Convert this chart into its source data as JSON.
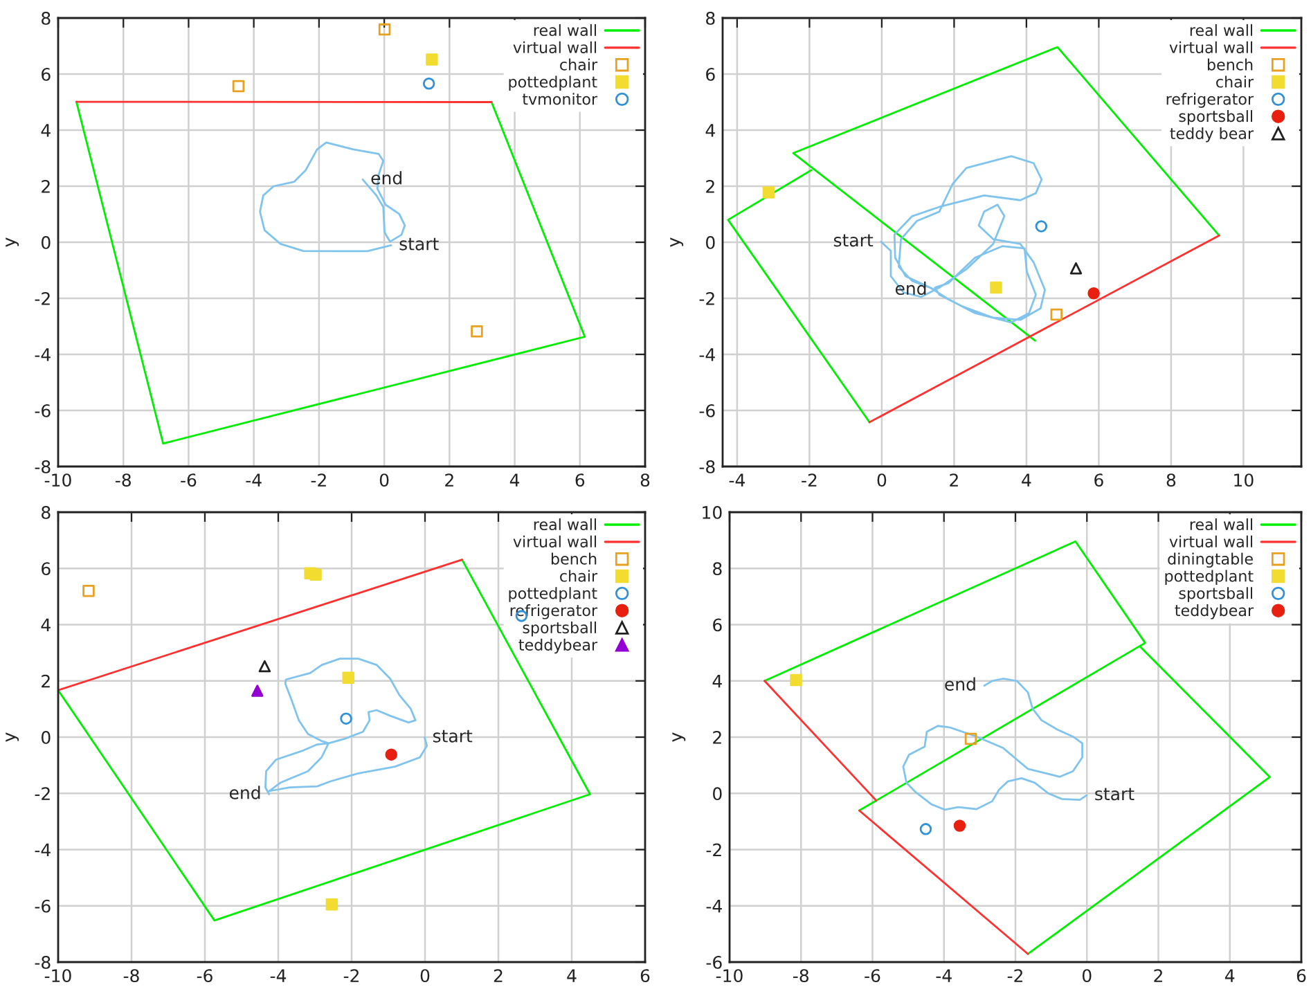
{
  "chart_data": [
    {
      "type": "line",
      "ylabel": "y",
      "xlim": [
        -10,
        8
      ],
      "ylim": [
        -8,
        8
      ],
      "xticks": [
        -10,
        -8,
        -6,
        -4,
        -2,
        0,
        2,
        4,
        6,
        8
      ],
      "yticks": [
        -8,
        -6,
        -4,
        -2,
        0,
        2,
        4,
        6,
        8
      ],
      "grid": true,
      "legend": "top right",
      "series": [
        {
          "name": "real wall",
          "color": "#00ee00",
          "x": [
            3.29,
            6.15,
            -6.78,
            -9.44
          ],
          "values": [
            5.0,
            -3.37,
            -7.18,
            5.01
          ]
        },
        {
          "name": "virtual wall",
          "color": "#ff3030",
          "x": [
            -9.44,
            3.29
          ],
          "values": [
            5.01,
            5.0
          ]
        },
        {
          "name": "chair",
          "type": "scatter",
          "marker": "square",
          "color": "#e8a020",
          "x": [
            0.01,
            -4.47,
            2.84
          ],
          "values": [
            7.59,
            5.57,
            -3.18
          ]
        },
        {
          "name": "pottedplant",
          "type": "scatter",
          "marker": "square",
          "color": "#f2dc30",
          "x": [
            1.46
          ],
          "values": [
            6.52
          ]
        },
        {
          "name": "tvmonitor",
          "type": "scatter",
          "marker": "circle",
          "color": "#3090d8",
          "x": [
            1.37
          ],
          "values": [
            5.66
          ]
        },
        {
          "color": "#80c4ee",
          "x": [
            0.21,
            -0.52,
            -1.5,
            -2.48,
            -3.18,
            -3.67,
            -3.81,
            -3.71,
            -3.39,
            -2.76,
            -2.41,
            -2.06,
            -1.78,
            -0.94,
            -0.17,
            -0.03,
            -0.17,
            -0.21,
            0.04,
            0.46,
            0.63,
            0.53,
            0.18,
            0.01,
            -0.03,
            -0.24,
            -0.66
          ],
          "values": [
            -0.11,
            -0.32,
            -0.32,
            -0.31,
            -0.06,
            0.43,
            1.09,
            1.67,
            2.0,
            2.16,
            2.57,
            3.31,
            3.56,
            3.31,
            3.15,
            2.9,
            2.41,
            1.91,
            1.34,
            1.01,
            0.6,
            0.27,
            0.02,
            0.35,
            1.26,
            1.67,
            2.24
          ]
        }
      ],
      "annotations": [
        {
          "text": "end",
          "x": -0.66,
          "y": 2.24
        },
        {
          "text": "start",
          "x": 0.21,
          "y": -0.11
        }
      ]
    },
    {
      "type": "line",
      "ylabel": "y",
      "xlim": [
        -4.4,
        11.6
      ],
      "ylim": [
        -8,
        8
      ],
      "xticks": [
        -4,
        -2,
        0,
        2,
        4,
        6,
        8,
        10
      ],
      "yticks": [
        -8,
        -6,
        -4,
        -2,
        0,
        2,
        4,
        6,
        8
      ],
      "grid": true,
      "legend": "top right",
      "series": [
        {
          "name": "real wall",
          "color": "#00ee00",
          "x": [
            9.33,
            4.86,
            -2.45,
            4.24,
            null,
            -1.95,
            -4.25,
            -0.34
          ],
          "values": [
            0.24,
            6.96,
            3.18,
            -3.51,
            null,
            2.57,
            0.8,
            -6.42
          ]
        },
        {
          "name": "virtual wall",
          "color": "#ff3030",
          "x": [
            -0.34,
            9.33
          ],
          "values": [
            -6.42,
            0.24
          ]
        },
        {
          "name": "bench",
          "type": "scatter",
          "marker": "square",
          "color": "#e8a020",
          "x": [
            4.83
          ],
          "values": [
            -2.58
          ]
        },
        {
          "name": "chair",
          "type": "scatter",
          "marker": "square",
          "color": "#f2dc30",
          "x": [
            -3.13,
            3.16
          ],
          "values": [
            1.78,
            -1.62
          ]
        },
        {
          "name": "refrigerator",
          "type": "scatter",
          "marker": "circle",
          "color": "#3090d8",
          "x": [
            4.41
          ],
          "values": [
            0.57
          ]
        },
        {
          "name": "sportsball",
          "type": "scatter",
          "marker": "circle",
          "color": "#e82010",
          "x": [
            5.86
          ],
          "values": [
            -1.82
          ]
        },
        {
          "name": "teddy bear",
          "type": "scatter",
          "marker": "triangle",
          "color": "#202020",
          "x": [
            5.37
          ],
          "values": [
            -0.93
          ]
        },
        {
          "color": "#80c4ee",
          "x": [
            -0.02,
            0.25,
            0.25,
            0.6,
            1.09,
            1.59,
            2.34,
            3.08,
            3.39,
            3.2,
            2.83,
            2.68,
            3.08,
            3.83,
            4.2,
            4.51,
            4.39,
            3.83,
            3.08,
            2.21,
            1.59,
            1.47,
            1.84,
            2.58,
            3.33,
            3.95,
            4.01,
            4.26,
            4.07,
            3.58,
            2.58,
            1.84,
            1.34,
            0.84,
            0.47,
            0.53,
            0.97,
            1.59,
            1.96,
            2.34,
            3.58,
            4.2,
            4.42,
            4.26,
            3.83,
            2.83,
            1.59,
            0.84,
            0.35,
            0.37,
            0.66,
            1.47
          ],
          "values": [
            0.02,
            -0.31,
            -1.21,
            -1.79,
            -1.95,
            -1.62,
            -0.96,
            -0.06,
            0.93,
            1.34,
            1.09,
            0.6,
            0.11,
            -0.06,
            -0.72,
            -1.7,
            -2.36,
            -2.77,
            -2.69,
            -2.28,
            -1.87,
            -1.62,
            -1.46,
            -0.55,
            -0.14,
            -0.22,
            -1.05,
            -1.87,
            -2.53,
            -2.86,
            -2.53,
            -2.03,
            -1.62,
            -1.38,
            -0.88,
            0.11,
            0.76,
            1.09,
            2.08,
            2.65,
            3.07,
            2.82,
            2.24,
            1.75,
            1.5,
            1.67,
            1.26,
            0.93,
            0.27,
            -0.55,
            -1.21,
            -1.7
          ]
        }
      ],
      "annotations": [
        {
          "text": "start",
          "x": -0.02,
          "y": 0.02
        },
        {
          "text": "end",
          "x": 1.47,
          "y": -1.7
        }
      ]
    },
    {
      "type": "line",
      "ylabel": "y",
      "xlim": [
        -10,
        6
      ],
      "ylim": [
        -8,
        8
      ],
      "xticks": [
        -10,
        -8,
        -6,
        -4,
        -2,
        0,
        2,
        4,
        6
      ],
      "yticks": [
        -8,
        -6,
        -4,
        -2,
        0,
        2,
        4,
        6,
        8
      ],
      "grid": true,
      "legend": "top right",
      "series": [
        {
          "name": "real wall",
          "color": "#00ee00",
          "x": [
            1.01,
            4.5,
            -5.74,
            -10.0
          ],
          "values": [
            6.31,
            -2.03,
            -6.52,
            1.67
          ]
        },
        {
          "name": "virtual wall",
          "color": "#ff3030",
          "x": [
            -10.0,
            1.01
          ],
          "values": [
            1.67,
            6.31
          ]
        },
        {
          "name": "bench",
          "type": "scatter",
          "marker": "square",
          "color": "#e8a020",
          "x": [
            -9.17
          ],
          "values": [
            5.2
          ]
        },
        {
          "name": "chair",
          "type": "scatter",
          "marker": "square",
          "color": "#f2dc30",
          "x": [
            -3.13,
            -2.98,
            -2.09,
            -2.54
          ],
          "values": [
            5.83,
            5.78,
            2.11,
            -5.95
          ]
        },
        {
          "name": "pottedplant",
          "type": "scatter",
          "marker": "circle",
          "color": "#3090d8",
          "x": [
            -2.15,
            2.63
          ],
          "values": [
            0.66,
            4.31
          ]
        },
        {
          "name": "refrigerator",
          "type": "scatter",
          "marker": "circle",
          "color": "#e82010",
          "x": [
            -0.92
          ],
          "values": [
            -0.62
          ]
        },
        {
          "name": "sportsball",
          "type": "scatter",
          "marker": "triangle",
          "color": "#202020",
          "x": [
            -4.37
          ],
          "values": [
            2.52
          ]
        },
        {
          "name": "teddybear",
          "type": "scatter",
          "marker": "triangle",
          "color": "#9400d3",
          "x": [
            -4.57
          ],
          "values": [
            1.65
          ]
        },
        {
          "color": "#80c4ee",
          "x": [
            -0.01,
            0.05,
            -0.14,
            -0.82,
            -1.82,
            -2.57,
            -2.94,
            -3.69,
            -4.25,
            -3.94,
            -3.19,
            -2.82,
            -2.63,
            -2.19,
            -1.69,
            -1.51,
            -1.54,
            -1.32,
            -0.95,
            -0.45,
            -0.26,
            -0.39,
            -0.7,
            -0.95,
            -1.32,
            -1.82,
            -2.32,
            -2.81,
            -3.13,
            -3.79,
            -3.81,
            -3.62,
            -3.44,
            -3.19,
            -2.81,
            -2.63,
            -2.94,
            -3.31,
            -4.06,
            -4.33,
            -4.35,
            -4.25
          ],
          "values": [
            -0.01,
            -0.31,
            -0.72,
            -1.05,
            -1.29,
            -1.57,
            -1.75,
            -1.79,
            -1.92,
            -1.62,
            -1.21,
            -0.72,
            -0.22,
            -0.06,
            0.19,
            0.6,
            0.89,
            0.96,
            0.76,
            0.52,
            0.6,
            1.01,
            1.5,
            2.08,
            2.57,
            2.79,
            2.79,
            2.57,
            2.28,
            2.05,
            1.91,
            1.26,
            0.6,
            0.11,
            -0.14,
            -0.22,
            -0.26,
            -0.47,
            -0.8,
            -1.21,
            -1.79,
            -2.03
          ]
        }
      ],
      "annotations": [
        {
          "text": "start",
          "x": -0.01,
          "y": -0.01
        },
        {
          "text": "end",
          "x": -4.25,
          "y": -2.03
        }
      ]
    },
    {
      "type": "line",
      "ylabel": "y",
      "xlim": [
        -10,
        6
      ],
      "ylim": [
        -6,
        10
      ],
      "xticks": [
        -10,
        -8,
        -6,
        -4,
        -2,
        0,
        2,
        4,
        6
      ],
      "yticks": [
        -6,
        -4,
        -2,
        0,
        2,
        4,
        6,
        8,
        10
      ],
      "grid": true,
      "legend": "top right",
      "series": [
        {
          "name": "real wall",
          "color": "#00ee00",
          "x": [
            -9.02,
            -0.32,
            1.63,
            -6.37,
            null,
            1.48,
            5.12,
            -1.65
          ],
          "values": [
            4.0,
            8.96,
            5.35,
            -0.61,
            null,
            5.23,
            0.58,
            -5.71
          ]
        },
        {
          "name": "virtual wall",
          "color": "#ff3030",
          "x": [
            -9.02,
            -5.9,
            null,
            -6.37,
            -1.65
          ],
          "values": [
            4.0,
            -0.25,
            null,
            -0.61,
            -5.71
          ]
        },
        {
          "name": "diningtable",
          "type": "scatter",
          "marker": "square",
          "color": "#e8a020",
          "x": [
            -3.25
          ],
          "values": [
            1.94
          ]
        },
        {
          "name": "pottedplant",
          "type": "scatter",
          "marker": "square",
          "color": "#f2dc30",
          "x": [
            -8.14
          ],
          "values": [
            4.03
          ]
        },
        {
          "name": "sportsball",
          "type": "scatter",
          "marker": "circle",
          "color": "#3090d8",
          "x": [
            -4.51
          ],
          "values": [
            -1.27
          ]
        },
        {
          "name": "teddybear",
          "type": "scatter",
          "marker": "circle",
          "color": "#e82010",
          "x": [
            -3.56
          ],
          "values": [
            -1.15
          ]
        },
        {
          "color": "#80c4ee",
          "x": [
            -0.01,
            -0.2,
            -0.7,
            -1.08,
            -1.46,
            -1.83,
            -2.21,
            -2.46,
            -2.65,
            -3.09,
            -3.6,
            -3.98,
            -4.35,
            -4.8,
            -5.05,
            -5.14,
            -4.98,
            -4.54,
            -4.48,
            -4.17,
            -3.85,
            -3.09,
            -2.34,
            -1.96,
            -1.65,
            -1.14,
            -0.76,
            -0.39,
            -0.13,
            -0.13,
            -0.39,
            -0.83,
            -1.27,
            -1.52,
            -1.65,
            -1.96,
            -2.34,
            -2.65,
            -2.87
          ],
          "values": [
            -0.07,
            -0.23,
            -0.2,
            0.0,
            0.38,
            0.54,
            0.43,
            0.13,
            -0.28,
            -0.56,
            -0.49,
            -0.58,
            -0.39,
            0.05,
            0.38,
            0.95,
            1.37,
            1.66,
            2.19,
            2.4,
            2.35,
            2.02,
            1.61,
            1.2,
            0.87,
            0.71,
            0.59,
            0.79,
            1.28,
            1.78,
            2.02,
            2.27,
            2.6,
            3.01,
            3.59,
            4.0,
            4.08,
            4.0,
            3.83
          ]
        }
      ],
      "annotations": [
        {
          "text": "start",
          "x": -0.01,
          "y": -0.07
        },
        {
          "text": "end",
          "x": -2.87,
          "y": 3.83
        }
      ]
    }
  ]
}
